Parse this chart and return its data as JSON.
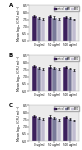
{
  "panels": [
    "A",
    "B",
    "C"
  ],
  "groups": [
    "0 ug/ml",
    "50 ug/ml",
    "500 ug/ml"
  ],
  "series_labels": [
    "control",
    "MB",
    "TBO"
  ],
  "series_colors": [
    "#3b1f5c",
    "#7a7a9a",
    "#c0bcd0"
  ],
  "bar_width": 0.28,
  "panel_data": [
    {
      "values": [
        [
          7.75,
          7.75,
          7.72
        ],
        [
          7.65,
          7.65,
          7.62
        ],
        [
          7.55,
          7.55,
          7.52
        ]
      ],
      "errors": [
        [
          0.08,
          0.09,
          0.07
        ],
        [
          0.07,
          0.08,
          0.06
        ],
        [
          0.06,
          0.07,
          0.06
        ]
      ],
      "ylim": [
        6.0,
        8.5
      ],
      "yticks": [
        6.0,
        6.5,
        7.0,
        7.5,
        8.0,
        8.5
      ],
      "ylabel": "Mean log₁₀ (CFU ml⁻¹)"
    },
    {
      "values": [
        [
          7.75,
          7.72,
          7.7
        ],
        [
          7.65,
          7.6,
          7.58
        ],
        [
          7.55,
          7.52,
          7.5
        ]
      ],
      "errors": [
        [
          0.08,
          0.09,
          0.07
        ],
        [
          0.07,
          0.08,
          0.06
        ],
        [
          0.06,
          0.07,
          0.06
        ]
      ],
      "ylim": [
        6.0,
        8.5
      ],
      "yticks": [
        6.0,
        6.5,
        7.0,
        7.5,
        8.0,
        8.5
      ],
      "ylabel": "Mean log₁₀ (CFU ml⁻¹)"
    },
    {
      "values": [
        [
          7.75,
          7.72,
          7.68
        ],
        [
          7.65,
          7.6,
          7.55
        ],
        [
          7.55,
          7.5,
          7.45
        ]
      ],
      "errors": [
        [
          0.08,
          0.09,
          0.07
        ],
        [
          0.07,
          0.08,
          0.06
        ],
        [
          0.06,
          0.07,
          0.06
        ]
      ],
      "ylim": [
        6.0,
        8.5
      ],
      "yticks": [
        6.0,
        6.5,
        7.0,
        7.5,
        8.0,
        8.5
      ],
      "ylabel": "Mean log₁₀ (CFU ml⁻¹)"
    }
  ],
  "background_color": "#ffffff",
  "axis_bg": "#ebebeb",
  "figsize": [
    0.82,
    1.5
  ],
  "dpi": 100
}
